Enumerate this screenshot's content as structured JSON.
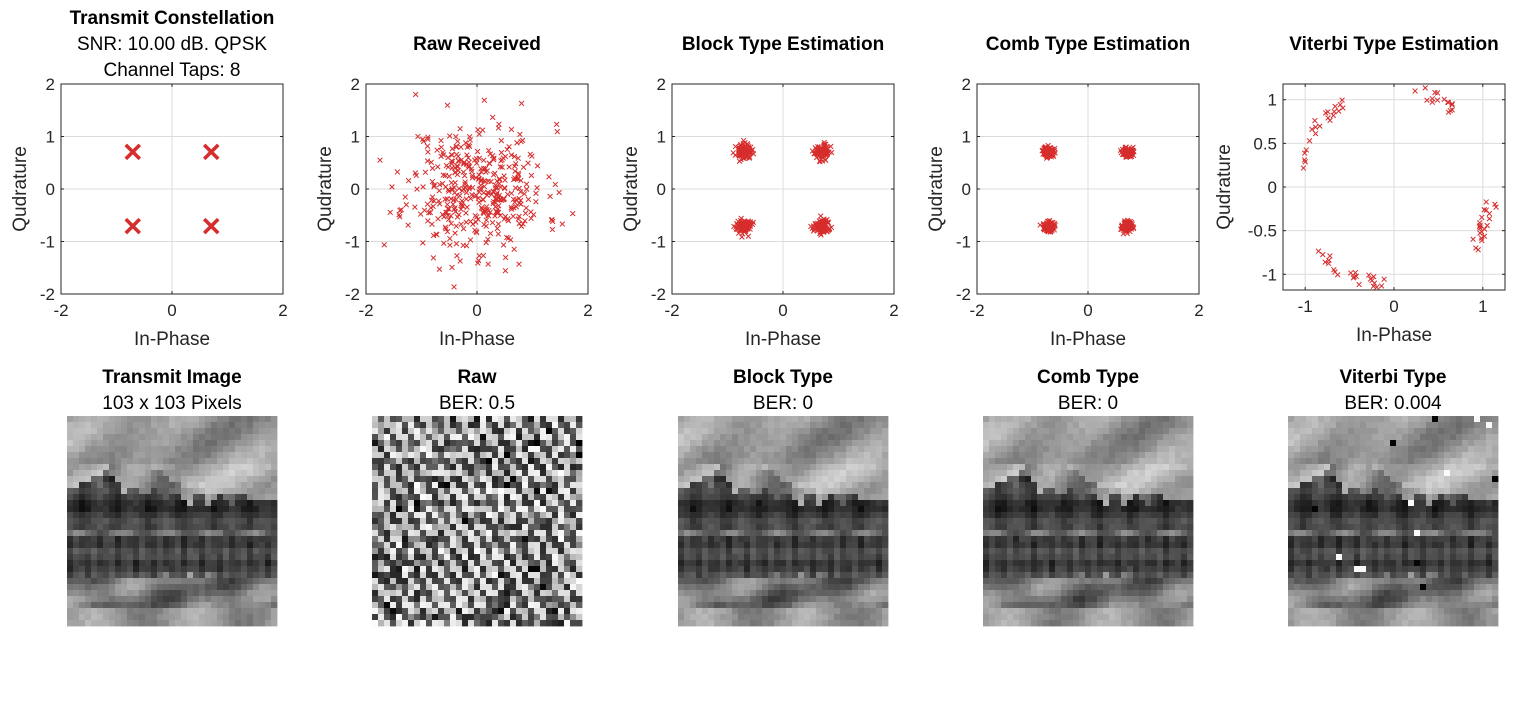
{
  "figure": {
    "marker_color": "#d62d2d",
    "grid_color": "#dcdcdc",
    "axes_color": "#262626"
  },
  "chart_data": [
    {
      "type": "scatter",
      "id": "transmit",
      "title": "Transmit Constellation",
      "subtitle_lines": [
        "SNR: 10.00 dB. QPSK",
        "Channel Taps: 8"
      ],
      "xlabel": "In-Phase",
      "ylabel": "Qudrature",
      "xlim": [
        -2,
        2
      ],
      "ylim": [
        -2,
        2
      ],
      "xticks": [
        -2,
        0,
        2
      ],
      "yticks": [
        -2,
        -1,
        0,
        1,
        2
      ],
      "grid": true,
      "marker": "x-large",
      "points": [
        [
          -0.707,
          0.707
        ],
        [
          0.707,
          0.707
        ],
        [
          -0.707,
          -0.707
        ],
        [
          0.707,
          -0.707
        ]
      ]
    },
    {
      "type": "scatter",
      "id": "raw",
      "title": "Raw Received",
      "xlabel": "In-Phase",
      "ylabel": "Qudrature",
      "xlim": [
        -2,
        2
      ],
      "ylim": [
        -2,
        2
      ],
      "xticks": [
        -2,
        0,
        2
      ],
      "yticks": [
        -2,
        -1,
        0,
        1,
        2
      ],
      "grid": true,
      "marker": "x-small",
      "cloud": {
        "center": [
          0,
          0
        ],
        "spread": 0.62,
        "count": 420,
        "seed": 11
      }
    },
    {
      "type": "scatter",
      "id": "block",
      "title": "Block Type Estimation",
      "xlabel": "In-Phase",
      "ylabel": "Qudrature",
      "xlim": [
        -2,
        2
      ],
      "ylim": [
        -2,
        2
      ],
      "xticks": [
        -2,
        0,
        2
      ],
      "yticks": [
        -2,
        -1,
        0,
        1,
        2
      ],
      "grid": true,
      "marker": "x-small",
      "clusters": {
        "centers": [
          [
            -0.707,
            0.707
          ],
          [
            0.707,
            0.707
          ],
          [
            -0.707,
            -0.707
          ],
          [
            0.707,
            -0.707
          ]
        ],
        "spread": 0.07,
        "count_each": 90,
        "seed": 23
      }
    },
    {
      "type": "scatter",
      "id": "comb",
      "title": "Comb Type Estimation",
      "xlabel": "In-Phase",
      "ylabel": "Qudrature",
      "xlim": [
        -2,
        2
      ],
      "ylim": [
        -2,
        2
      ],
      "xticks": [
        -2,
        0,
        2
      ],
      "yticks": [
        -2,
        -1,
        0,
        1,
        2
      ],
      "grid": true,
      "marker": "x-small",
      "clusters": {
        "centers": [
          [
            -0.707,
            0.707
          ],
          [
            0.707,
            0.707
          ],
          [
            -0.707,
            -0.707
          ],
          [
            0.707,
            -0.707
          ]
        ],
        "spread": 0.05,
        "count_each": 90,
        "seed": 37
      }
    },
    {
      "type": "scatter",
      "id": "viterbi",
      "title": "Viterbi Type Estimation",
      "xlabel": "In-Phase",
      "ylabel": "Qudrature",
      "xlim": [
        -1.25,
        1.25
      ],
      "ylim": [
        -1.18,
        1.18
      ],
      "xticks": [
        -1,
        0,
        1
      ],
      "yticks": [
        -1,
        -0.5,
        0,
        0.5,
        1
      ],
      "grid": true,
      "marker": "x-small",
      "arcs": [
        {
          "from_deg": 120,
          "to_deg": 172,
          "count": 22
        },
        {
          "from_deg": 52,
          "to_deg": 78,
          "count": 16
        },
        {
          "from_deg": -40,
          "to_deg": -5,
          "count": 22
        },
        {
          "from_deg": -140,
          "to_deg": -95,
          "count": 24
        }
      ],
      "arc_radius": 1.15,
      "arc_seed": 53
    }
  ],
  "images": [
    {
      "id": "img-transmit",
      "title": "Transmit Image",
      "subtitle": "103 x 103 Pixels",
      "kind": "landscape",
      "ber": null
    },
    {
      "id": "img-raw",
      "title": "Raw",
      "subtitle": "BER: 0.5",
      "kind": "noise",
      "ber": 0.5
    },
    {
      "id": "img-block",
      "title": "Block Type",
      "subtitle": "BER: 0",
      "kind": "landscape",
      "ber": 0
    },
    {
      "id": "img-comb",
      "title": "Comb Type",
      "subtitle": "BER: 0",
      "kind": "landscape",
      "ber": 0
    },
    {
      "id": "img-viterbi",
      "title": "Viterbi Type",
      "subtitle": "BER: 0.004",
      "kind": "landscape-noisy",
      "ber": 0.004
    }
  ]
}
